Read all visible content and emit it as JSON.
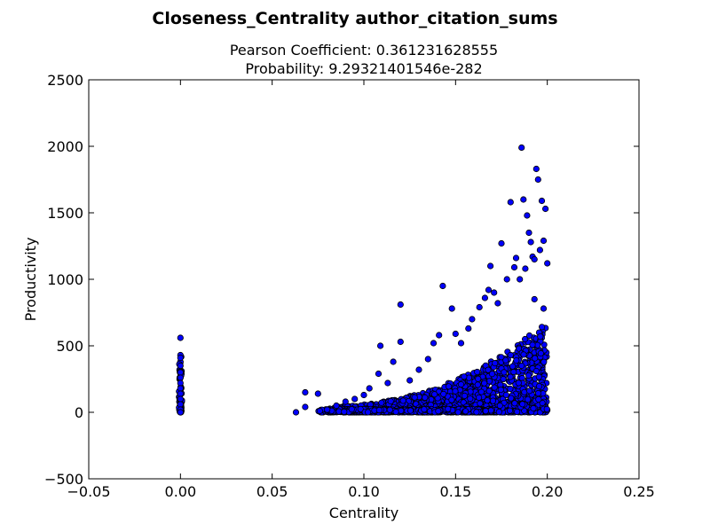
{
  "chart_data": {
    "type": "scatter",
    "suptitle": "Closeness_Centrality author_citation_sums",
    "title_line1": "Pearson Coefficient: 0.361231628555",
    "title_line2": "Probability: 9.29321401546e-282",
    "xlabel": "Centrality",
    "ylabel": "Productivity",
    "xlim": [
      -0.05,
      0.25
    ],
    "ylim": [
      -500,
      2500
    ],
    "xticks": [
      -0.05,
      0.0,
      0.05,
      0.1,
      0.15,
      0.2,
      0.25
    ],
    "xtick_labels": [
      "−0.05",
      "0.00",
      "0.05",
      "0.10",
      "0.15",
      "0.20",
      "0.25"
    ],
    "yticks": [
      -500,
      0,
      500,
      1000,
      1500,
      2000,
      2500
    ],
    "ytick_labels": [
      "−500",
      "0",
      "500",
      "1000",
      "1500",
      "2000",
      "2500"
    ],
    "grid": false,
    "marker_color": "#0000ff",
    "marker_edge": "#000000",
    "highlighted_points": [
      [
        0.0,
        560
      ],
      [
        0.0,
        430
      ],
      [
        0.0,
        410
      ],
      [
        0.0,
        350
      ],
      [
        0.0,
        300
      ],
      [
        0.0,
        260
      ],
      [
        0.0,
        220
      ],
      [
        0.0,
        180
      ],
      [
        0.0,
        140
      ],
      [
        0.0,
        100
      ],
      [
        0.0,
        60
      ],
      [
        0.0,
        20
      ],
      [
        0.0,
        0
      ],
      [
        0.063,
        0
      ],
      [
        0.068,
        150
      ],
      [
        0.068,
        40
      ],
      [
        0.075,
        140
      ],
      [
        0.076,
        10
      ],
      [
        0.08,
        20
      ],
      [
        0.085,
        50
      ],
      [
        0.09,
        80
      ],
      [
        0.095,
        100
      ],
      [
        0.1,
        130
      ],
      [
        0.103,
        180
      ],
      [
        0.108,
        290
      ],
      [
        0.109,
        500
      ],
      [
        0.113,
        220
      ],
      [
        0.116,
        380
      ],
      [
        0.12,
        530
      ],
      [
        0.12,
        810
      ],
      [
        0.125,
        240
      ],
      [
        0.13,
        320
      ],
      [
        0.135,
        400
      ],
      [
        0.138,
        520
      ],
      [
        0.141,
        580
      ],
      [
        0.143,
        950
      ],
      [
        0.148,
        780
      ],
      [
        0.15,
        590
      ],
      [
        0.153,
        520
      ],
      [
        0.157,
        630
      ],
      [
        0.159,
        700
      ],
      [
        0.163,
        790
      ],
      [
        0.166,
        860
      ],
      [
        0.168,
        920
      ],
      [
        0.169,
        1100
      ],
      [
        0.171,
        900
      ],
      [
        0.173,
        820
      ],
      [
        0.175,
        1270
      ],
      [
        0.178,
        1000
      ],
      [
        0.18,
        1580
      ],
      [
        0.182,
        1090
      ],
      [
        0.183,
        1160
      ],
      [
        0.185,
        1000
      ],
      [
        0.186,
        1990
      ],
      [
        0.187,
        1600
      ],
      [
        0.188,
        1080
      ],
      [
        0.189,
        1480
      ],
      [
        0.19,
        1350
      ],
      [
        0.191,
        1280
      ],
      [
        0.192,
        1170
      ],
      [
        0.193,
        850
      ],
      [
        0.193,
        1150
      ],
      [
        0.194,
        1830
      ],
      [
        0.195,
        1750
      ],
      [
        0.196,
        1220
      ],
      [
        0.197,
        1590
      ],
      [
        0.198,
        1290
      ],
      [
        0.199,
        1530
      ],
      [
        0.2,
        1120
      ],
      [
        0.198,
        780
      ],
      [
        0.186,
        350
      ],
      [
        0.192,
        330
      ],
      [
        0.194,
        310
      ],
      [
        0.18,
        430
      ],
      [
        0.176,
        250
      ]
    ]
  }
}
